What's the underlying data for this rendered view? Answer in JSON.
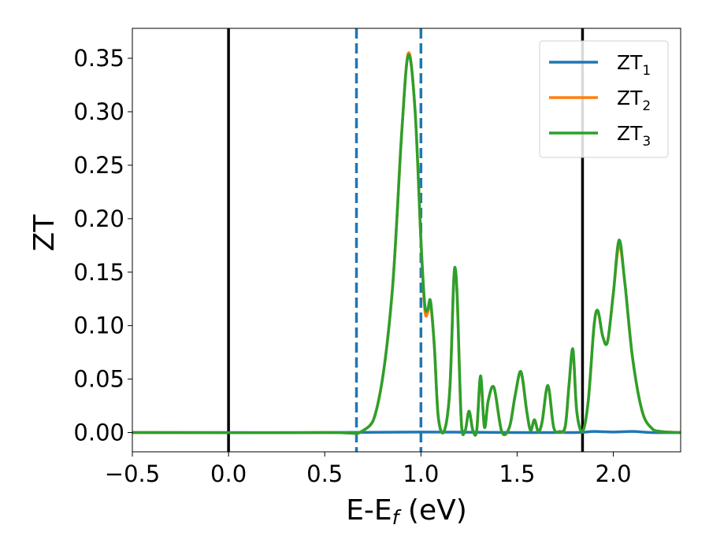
{
  "chart_data": {
    "type": "line",
    "xlabel": "E-E",
    "xlabel_sub": "f",
    "xlabel_unit": " (eV)",
    "ylabel": "ZT",
    "xlim": [
      -0.5,
      2.35
    ],
    "ylim": [
      -0.018,
      0.378
    ],
    "xticks": [
      -0.5,
      0.0,
      0.5,
      1.0,
      1.5,
      2.0
    ],
    "xtick_labels": [
      "−0.5",
      "0.0",
      "0.5",
      "1.0",
      "1.5",
      "2.0"
    ],
    "yticks": [
      0.0,
      0.05,
      0.1,
      0.15,
      0.2,
      0.25,
      0.3,
      0.35
    ],
    "ytick_labels": [
      "0.00",
      "0.05",
      "0.10",
      "0.15",
      "0.20",
      "0.25",
      "0.30",
      "0.35"
    ],
    "grid": false,
    "legend_position": "top-right",
    "vlines": [
      {
        "x": 0.0,
        "style": "solid",
        "color": "#000000"
      },
      {
        "x": 0.665,
        "style": "dashed",
        "color": "#1f77b4"
      },
      {
        "x": 1.0,
        "style": "dashed",
        "color": "#1f77b4"
      },
      {
        "x": 1.84,
        "style": "solid",
        "color": "#000000"
      }
    ],
    "series": [
      {
        "name": "ZT",
        "sub": "1",
        "color": "#1f77b4",
        "x": [
          -0.5,
          0.0,
          0.5,
          1.0,
          1.5,
          1.8,
          1.9,
          2.0,
          2.1,
          2.2,
          2.35
        ],
        "y": [
          0.0,
          0.0,
          0.0,
          0.0005,
          0.0,
          0.0,
          0.001,
          0.0005,
          0.001,
          0.0,
          0.0
        ]
      },
      {
        "name": "ZT",
        "sub": "2",
        "color": "#ff7f0e",
        "x": [
          -0.5,
          0.5,
          0.7,
          0.78,
          0.85,
          0.9,
          0.935,
          0.97,
          1.0,
          1.02,
          1.035,
          1.05,
          1.07,
          1.09,
          1.12,
          1.15,
          1.17,
          1.18,
          1.19,
          1.21,
          1.23,
          1.25,
          1.27,
          1.29,
          1.31,
          1.33,
          1.35,
          1.38,
          1.42,
          1.46,
          1.49,
          1.52,
          1.55,
          1.57,
          1.59,
          1.61,
          1.63,
          1.66,
          1.69,
          1.72,
          1.75,
          1.77,
          1.79,
          1.81,
          1.84,
          1.87,
          1.9,
          1.92,
          1.945,
          1.97,
          2.0,
          2.03,
          2.06,
          2.1,
          2.15,
          2.2,
          2.25,
          2.35
        ],
        "y": [
          0.0,
          0.0,
          0.002,
          0.03,
          0.13,
          0.28,
          0.355,
          0.3,
          0.18,
          0.115,
          0.112,
          0.12,
          0.08,
          0.015,
          0.001,
          0.04,
          0.14,
          0.151,
          0.12,
          0.01,
          0.002,
          0.02,
          0.002,
          0.002,
          0.052,
          0.005,
          0.03,
          0.042,
          0.001,
          0.005,
          0.035,
          0.056,
          0.02,
          0.002,
          0.012,
          0.001,
          0.01,
          0.044,
          0.005,
          0.001,
          0.005,
          0.045,
          0.077,
          0.02,
          0.001,
          0.03,
          0.1,
          0.113,
          0.09,
          0.085,
          0.13,
          0.175,
          0.14,
          0.07,
          0.02,
          0.004,
          0.001,
          0.0
        ]
      },
      {
        "name": "ZT",
        "sub": "3",
        "color": "#2ca02c",
        "x": [
          -0.5,
          0.5,
          0.7,
          0.78,
          0.85,
          0.9,
          0.935,
          0.97,
          1.0,
          1.02,
          1.035,
          1.05,
          1.07,
          1.09,
          1.12,
          1.15,
          1.17,
          1.18,
          1.19,
          1.21,
          1.23,
          1.25,
          1.27,
          1.29,
          1.31,
          1.33,
          1.35,
          1.38,
          1.42,
          1.46,
          1.49,
          1.52,
          1.55,
          1.57,
          1.59,
          1.61,
          1.63,
          1.66,
          1.69,
          1.72,
          1.75,
          1.77,
          1.79,
          1.81,
          1.84,
          1.87,
          1.9,
          1.92,
          1.945,
          1.97,
          2.0,
          2.03,
          2.06,
          2.1,
          2.15,
          2.2,
          2.25,
          2.35
        ],
        "y": [
          0.0,
          0.0,
          0.002,
          0.03,
          0.13,
          0.28,
          0.353,
          0.3,
          0.18,
          0.12,
          0.115,
          0.123,
          0.08,
          0.015,
          0.001,
          0.04,
          0.14,
          0.152,
          0.12,
          0.01,
          0.002,
          0.02,
          0.002,
          0.002,
          0.053,
          0.005,
          0.03,
          0.042,
          0.001,
          0.005,
          0.035,
          0.057,
          0.02,
          0.002,
          0.012,
          0.001,
          0.01,
          0.044,
          0.005,
          0.001,
          0.006,
          0.045,
          0.078,
          0.02,
          0.001,
          0.03,
          0.1,
          0.114,
          0.09,
          0.085,
          0.13,
          0.18,
          0.14,
          0.07,
          0.02,
          0.004,
          0.001,
          0.0
        ]
      }
    ]
  }
}
